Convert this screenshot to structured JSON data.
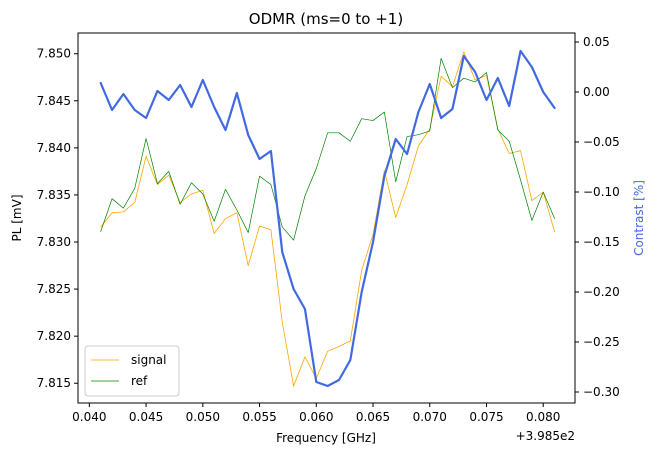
{
  "chart_data": {
    "type": "line",
    "title": "ODMR (ms=0 to +1)",
    "xlabel": "Frequency [GHz]",
    "ylabel": "PL [mV]",
    "y2label": "Contrast [%]",
    "x_offset_label": "+3.985e2",
    "xlim": [
      0.039,
      0.0828
    ],
    "ylim": [
      7.8129,
      7.8522
    ],
    "y2lim": [
      -0.311,
      0.059
    ],
    "xticks": [
      "0.040",
      "0.045",
      "0.050",
      "0.055",
      "0.060",
      "0.065",
      "0.070",
      "0.075",
      "0.080"
    ],
    "xtick_values": [
      0.04,
      0.045,
      0.05,
      0.055,
      0.06,
      0.065,
      0.07,
      0.075,
      0.08
    ],
    "yticks": [
      "7.815",
      "7.820",
      "7.825",
      "7.830",
      "7.835",
      "7.840",
      "7.845",
      "7.850"
    ],
    "ytick_values": [
      7.815,
      7.82,
      7.825,
      7.83,
      7.835,
      7.84,
      7.845,
      7.85
    ],
    "y2ticks": [
      "0.05",
      "0.00",
      "−0.05",
      "−0.10",
      "−0.15",
      "−0.20",
      "−0.25",
      "−0.30"
    ],
    "y2tick_values": [
      0.05,
      0.0,
      -0.05,
      -0.1,
      -0.15,
      -0.2,
      -0.25,
      -0.3
    ],
    "legend_position": "lower-left",
    "grid": false,
    "x": [
      0.041,
      0.042,
      0.043,
      0.044,
      0.045,
      0.046,
      0.047,
      0.048,
      0.049,
      0.05,
      0.051,
      0.052,
      0.053,
      0.054,
      0.055,
      0.056,
      0.057,
      0.058,
      0.059,
      0.06,
      0.061,
      0.062,
      0.063,
      0.064,
      0.065,
      0.066,
      0.067,
      0.068,
      0.069,
      0.07,
      0.071,
      0.072,
      0.073,
      0.074,
      0.075,
      0.076,
      0.077,
      0.078,
      0.079,
      0.08,
      0.081
    ],
    "series": [
      {
        "name": "signal",
        "axis": "left",
        "color": "#ffa500",
        "values": [
          7.8316,
          7.8331,
          7.8332,
          7.8342,
          7.8391,
          7.8361,
          7.8371,
          7.8342,
          7.8351,
          7.8355,
          7.8309,
          7.8325,
          7.8331,
          7.8275,
          7.8317,
          7.8313,
          7.8215,
          7.8147,
          7.8178,
          7.8155,
          7.8184,
          7.8189,
          7.8195,
          7.827,
          7.8308,
          7.8376,
          7.8326,
          7.8361,
          7.8402,
          7.842,
          7.8476,
          7.8465,
          7.8502,
          7.8472,
          7.8477,
          7.842,
          7.8394,
          7.8397,
          7.8344,
          7.8353,
          7.8311
        ]
      },
      {
        "name": "ref",
        "axis": "left",
        "color": "#008000",
        "values": [
          7.8311,
          7.8346,
          7.8336,
          7.8357,
          7.841,
          7.8362,
          7.8375,
          7.834,
          7.8363,
          7.8351,
          7.8322,
          7.8356,
          7.8334,
          7.831,
          7.837,
          7.8361,
          7.8316,
          7.8302,
          7.8349,
          7.8378,
          7.8416,
          7.8416,
          7.8407,
          7.8431,
          7.8429,
          7.8438,
          7.8364,
          7.8412,
          7.8414,
          7.8418,
          7.8495,
          7.8464,
          7.8474,
          7.847,
          7.848,
          7.8419,
          7.8407,
          7.8366,
          7.8323,
          7.8353,
          7.8325
        ]
      },
      {
        "name": "",
        "axis": "right",
        "color": "#4169e1",
        "values": [
          0.009,
          -0.018,
          -0.002,
          -0.018,
          -0.026,
          0.001,
          -0.008,
          0.007,
          -0.015,
          0.012,
          -0.015,
          -0.038,
          -0.001,
          -0.043,
          -0.067,
          -0.059,
          -0.16,
          -0.197,
          -0.217,
          -0.29,
          -0.294,
          -0.288,
          -0.268,
          -0.2,
          -0.15,
          -0.084,
          -0.047,
          -0.062,
          -0.02,
          0.008,
          -0.026,
          -0.017,
          0.036,
          0.02,
          -0.008,
          0.014,
          -0.014,
          0.041,
          0.025,
          0.0,
          -0.016
        ]
      }
    ]
  }
}
